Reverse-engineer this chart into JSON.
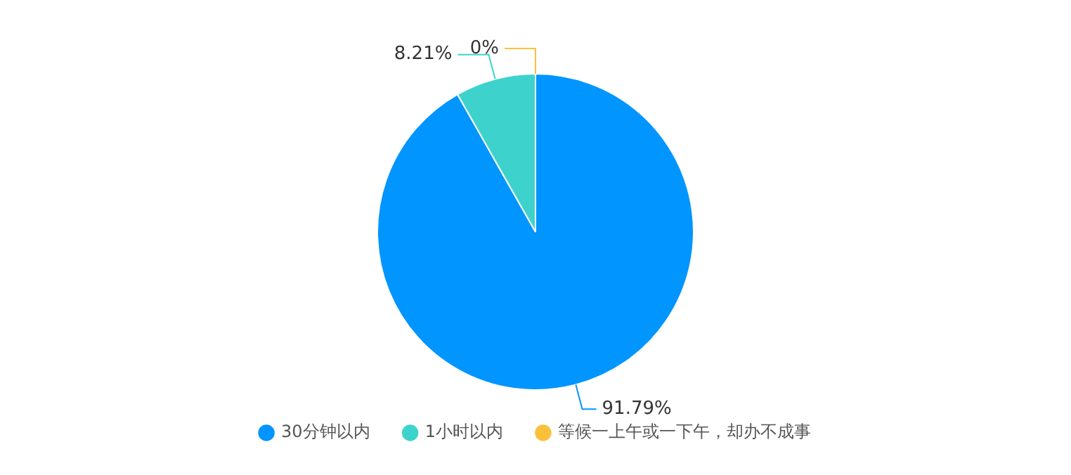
{
  "chart_data": {
    "type": "pie",
    "categories": [
      "30分钟以内",
      "1小时以内",
      "等候一上午或一下午，却办不成事"
    ],
    "values": [
      91.79,
      8.21,
      0
    ],
    "colors": [
      "#0095ff",
      "#3dd3cc",
      "#f9c13b"
    ],
    "value_labels": [
      "91.79%",
      "8.21%",
      "0%"
    ],
    "legend": "bottom"
  }
}
